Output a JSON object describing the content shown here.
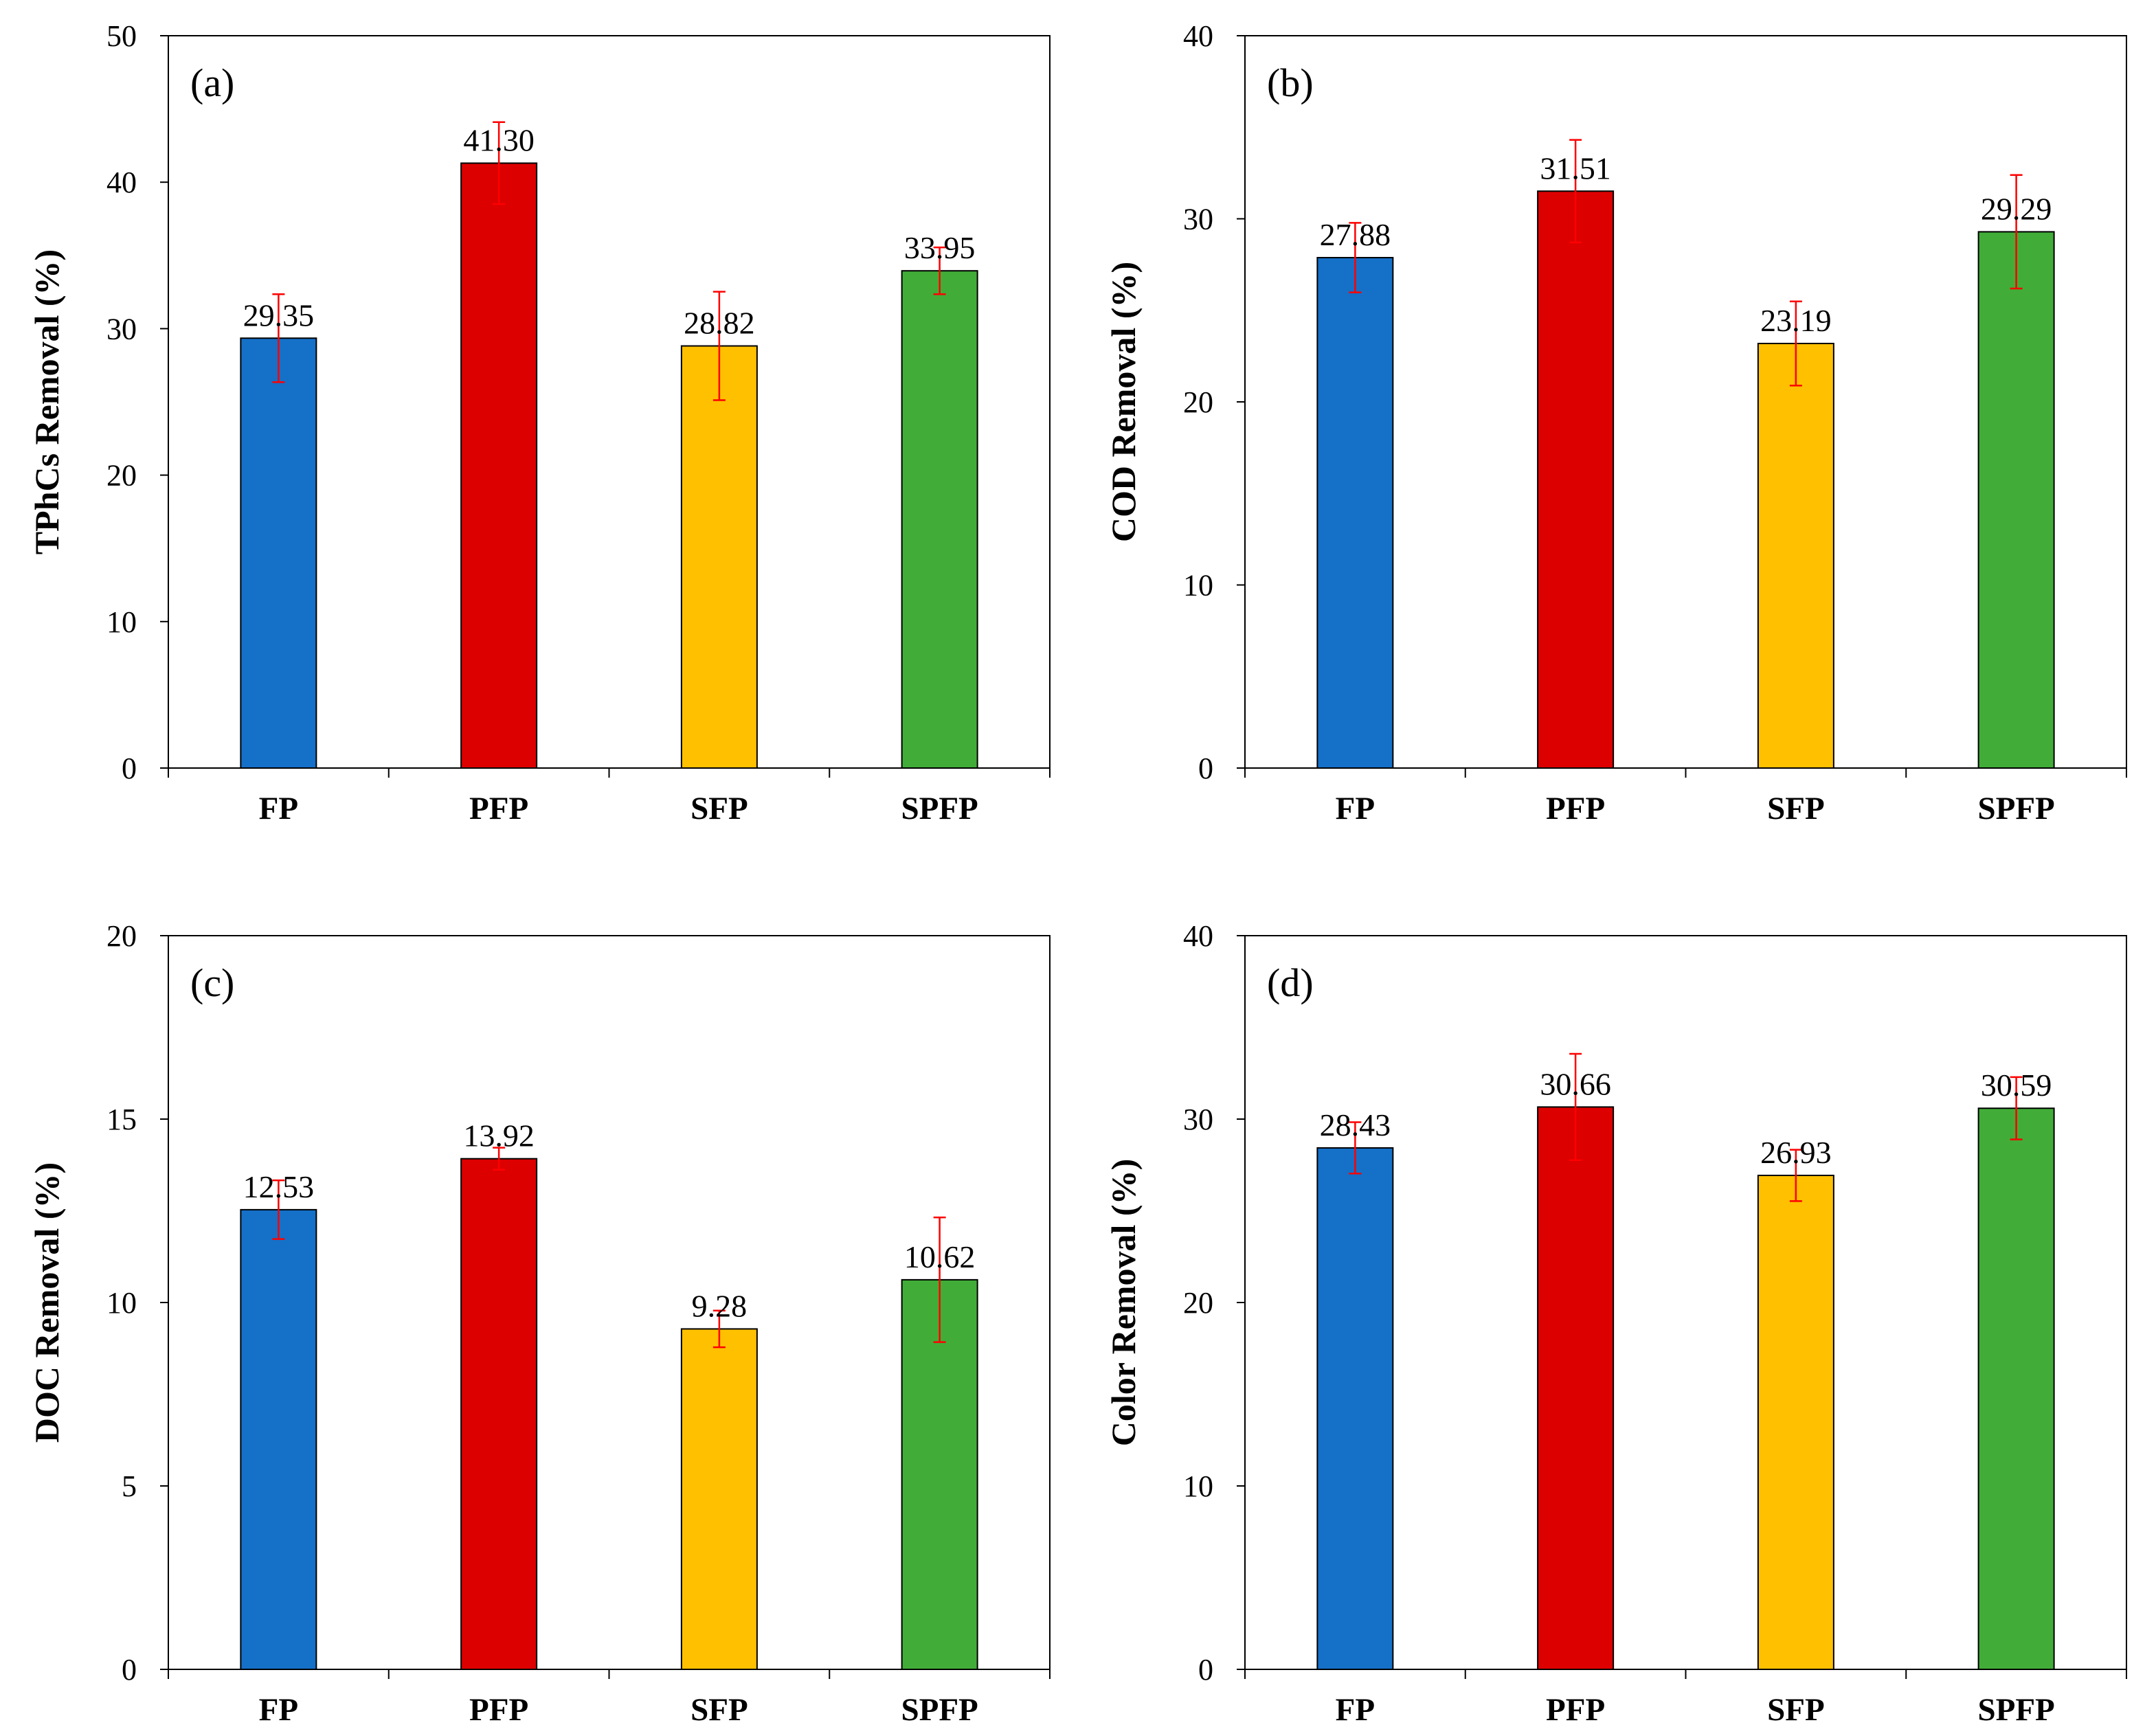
{
  "chart_data": [
    {
      "type": "bar",
      "panel_label": "(a)",
      "ylabel": "TPhCs Removal (%)",
      "xlabel": "",
      "ylim": [
        0,
        50
      ],
      "yticks": [
        0,
        10,
        20,
        30,
        40,
        50
      ],
      "categories": [
        "FP",
        "PFP",
        "SFP",
        "SPFP"
      ],
      "values": [
        29.35,
        41.3,
        28.82,
        33.95
      ],
      "value_labels": [
        "29.35",
        "41.30",
        "28.82",
        "33.95"
      ],
      "errors": [
        3.0,
        2.8,
        3.7,
        1.6
      ],
      "colors": [
        "#1570C8",
        "#DD0000",
        "#FFC000",
        "#41AD38"
      ],
      "error_color": "#FF0000",
      "grid": false
    },
    {
      "type": "bar",
      "panel_label": "(b)",
      "ylabel": "COD Removal (%)",
      "xlabel": "",
      "ylim": [
        0,
        40
      ],
      "yticks": [
        0,
        10,
        20,
        30,
        40
      ],
      "categories": [
        "FP",
        "PFP",
        "SFP",
        "SPFP"
      ],
      "values": [
        27.88,
        31.51,
        23.19,
        29.29
      ],
      "value_labels": [
        "27.88",
        "31.51",
        "23.19",
        "29.29"
      ],
      "errors": [
        1.9,
        2.8,
        2.3,
        3.1
      ],
      "colors": [
        "#1570C8",
        "#DD0000",
        "#FFC000",
        "#41AD38"
      ],
      "error_color": "#FF0000",
      "grid": false
    },
    {
      "type": "bar",
      "panel_label": "(c)",
      "ylabel": "DOC Removal (%)",
      "xlabel": "",
      "ylim": [
        0,
        20
      ],
      "yticks": [
        0,
        5,
        10,
        15,
        20
      ],
      "categories": [
        "FP",
        "PFP",
        "SFP",
        "SPFP"
      ],
      "values": [
        12.53,
        13.92,
        9.28,
        10.62
      ],
      "value_labels": [
        "12.53",
        "13.92",
        "9.28",
        "10.62"
      ],
      "errors": [
        0.8,
        0.3,
        0.5,
        1.7
      ],
      "colors": [
        "#1570C8",
        "#DD0000",
        "#FFC000",
        "#41AD38"
      ],
      "error_color": "#FF0000",
      "grid": false
    },
    {
      "type": "bar",
      "panel_label": "(d)",
      "ylabel": "Color Removal (%)",
      "xlabel": "",
      "ylim": [
        0,
        40
      ],
      "yticks": [
        0,
        10,
        20,
        30,
        40
      ],
      "categories": [
        "FP",
        "PFP",
        "SFP",
        "SPFP"
      ],
      "values": [
        28.43,
        30.66,
        26.93,
        30.59
      ],
      "value_labels": [
        "28.43",
        "30.66",
        "26.93",
        "30.59"
      ],
      "errors": [
        1.4,
        2.9,
        1.4,
        1.7
      ],
      "colors": [
        "#1570C8",
        "#DD0000",
        "#FFC000",
        "#41AD38"
      ],
      "error_color": "#FF0000",
      "grid": false
    }
  ]
}
